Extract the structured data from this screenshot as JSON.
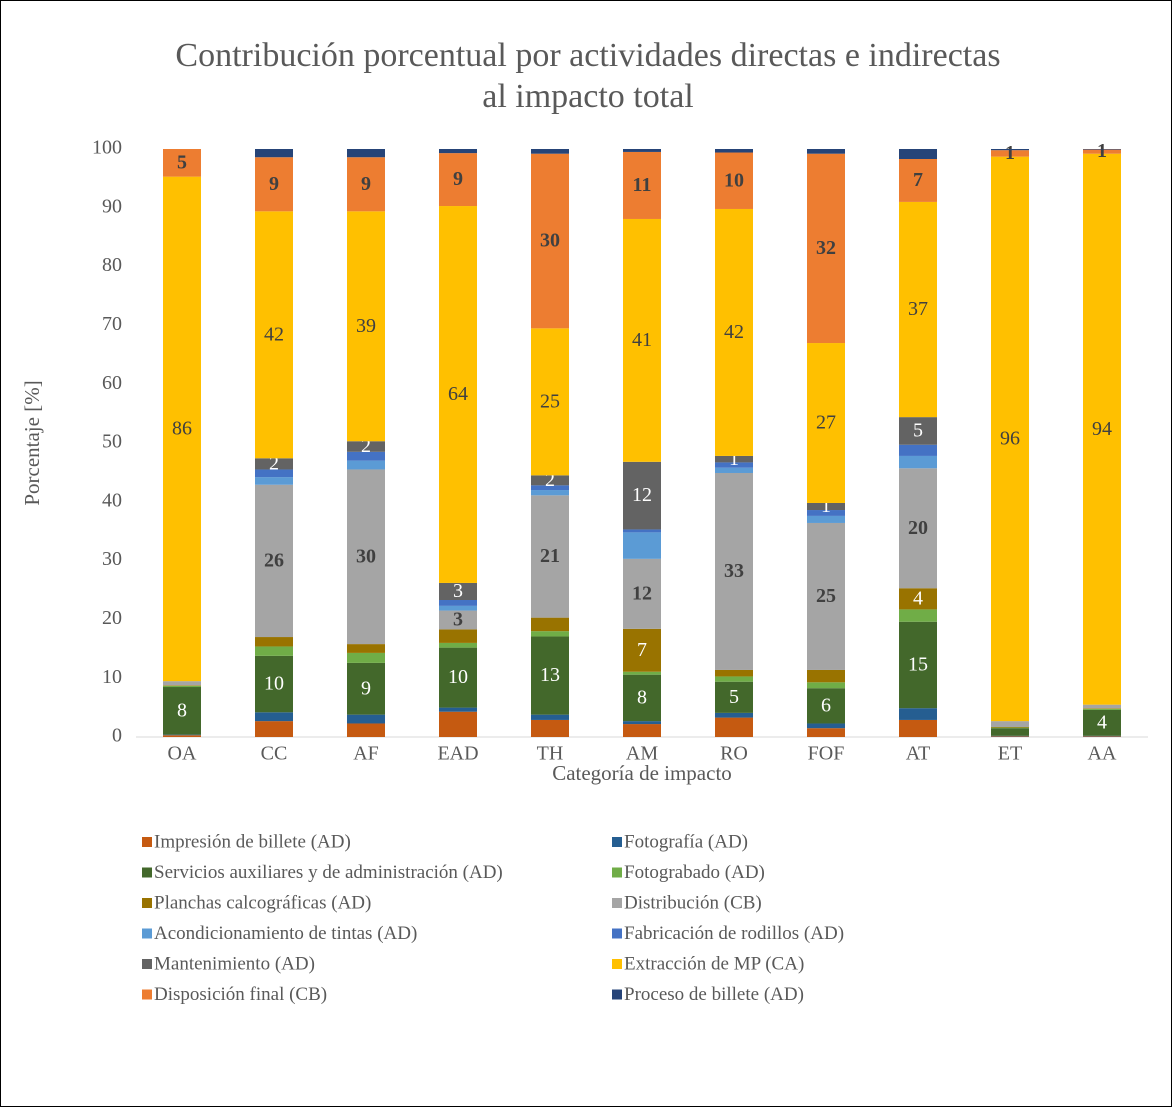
{
  "chart_data": {
    "type": "stacked_bar",
    "title": [
      "Contribución porcentual por actividades directas e indirectas",
      "al impacto total"
    ],
    "x_label": "Categoría de impacto",
    "y_label": "Porcentaje [%]",
    "categories": [
      "OA",
      "CC",
      "AF",
      "EAD",
      "TH",
      "AM",
      "RO",
      "FOF",
      "AT",
      "ET",
      "AA"
    ],
    "ylim": [
      0,
      100
    ],
    "yticks": [
      0,
      10,
      20,
      30,
      40,
      50,
      60,
      70,
      80,
      90,
      100
    ],
    "grid": false,
    "legend": "bottom",
    "series": [
      {
        "name": "Impresión de billete (AD)",
        "color": "#c55a11",
        "values": [
          0.3,
          2.7,
          2.3,
          4.3,
          2.9,
          2.2,
          3.3,
          1.5,
          2.9,
          0.1,
          0.1
        ]
      },
      {
        "name": "Fotografía (AD)",
        "color": "#255e91",
        "values": [
          0.1,
          1.5,
          1.5,
          0.7,
          0.9,
          0.5,
          0.8,
          0.8,
          2.0,
          0.1,
          0.1
        ]
      },
      {
        "name": "Servicios auxiliares y de administración (AD)",
        "color": "#43682b",
        "values": [
          8.1,
          9.6,
          8.8,
          10.2,
          13.3,
          7.9,
          5.3,
          6.0,
          14.7,
          1.3,
          4.4
        ],
        "value_labels": [
          "8",
          "10",
          "9",
          "10",
          "13",
          "8",
          "5",
          "6",
          "15",
          null,
          "4"
        ]
      },
      {
        "name": "Fotograbado (AD)",
        "color": "#70ad47",
        "values": [
          0.2,
          1.6,
          1.7,
          0.8,
          0.9,
          0.5,
          0.9,
          1.0,
          2.1,
          0.1,
          0.2
        ]
      },
      {
        "name": "Planchas calcográficas (AD)",
        "color": "#997300",
        "values": [
          0.1,
          1.6,
          1.5,
          2.3,
          2.3,
          7.3,
          1.1,
          2.1,
          3.6,
          0.1,
          0.1
        ],
        "value_labels": [
          null,
          null,
          null,
          null,
          null,
          "7",
          null,
          null,
          "4",
          null,
          null
        ]
      },
      {
        "name": "Distribución (CB)",
        "color": "#a5a5a5",
        "values": [
          0.7,
          25.9,
          29.7,
          3.2,
          20.8,
          11.9,
          33.5,
          25.0,
          20.4,
          1.0,
          0.6
        ],
        "value_labels": [
          null,
          "26",
          "30",
          "3",
          "21",
          "12",
          "33",
          "25",
          "20",
          null,
          null
        ]
      },
      {
        "name": "Acondicionamiento de tintas (AD)",
        "color": "#5b9bd5",
        "values": [
          0,
          1.3,
          1.5,
          0.8,
          0.9,
          4.5,
          0.9,
          1.2,
          2.1,
          0,
          0
        ]
      },
      {
        "name": "Fabricación de rodillos (AD)",
        "color": "#4472c4",
        "values": [
          0,
          1.3,
          1.5,
          1.0,
          0.8,
          0.5,
          0.9,
          1.0,
          1.9,
          0,
          0
        ]
      },
      {
        "name": "Mantenimiento (AD)",
        "color": "#636363",
        "values": [
          0,
          1.9,
          1.8,
          2.9,
          1.7,
          11.5,
          1.1,
          1.2,
          4.7,
          0,
          0
        ],
        "value_labels": [
          null,
          "2",
          "2",
          "3",
          "2",
          "12",
          "1",
          "1",
          "5",
          null,
          null
        ]
      },
      {
        "name": "Extracción de MP (CA)",
        "color": "#ffc000",
        "values": [
          85.8,
          42.0,
          39.1,
          64.1,
          25.0,
          41.3,
          42.0,
          27.2,
          36.6,
          96.0,
          93.7
        ],
        "value_labels": [
          "86",
          "42",
          "39",
          "64",
          "25",
          "41",
          "42",
          "27",
          "37",
          "96",
          "94"
        ]
      },
      {
        "name": "Disposición final (CB)",
        "color": "#ed7d31",
        "values": [
          4.7,
          9.2,
          9.2,
          9.0,
          29.7,
          11.4,
          9.6,
          32.2,
          7.3,
          1.1,
          0.7
        ],
        "value_labels": [
          "5",
          "9",
          "9",
          "9",
          "30",
          "11",
          "10",
          "32",
          "7",
          "1",
          "1"
        ]
      },
      {
        "name": "Proceso de billete (AD)",
        "color": "#264478",
        "values": [
          0,
          1.4,
          1.4,
          0.7,
          0.8,
          0.5,
          0.6,
          0.8,
          1.7,
          0.2,
          0.1
        ]
      }
    ]
  }
}
